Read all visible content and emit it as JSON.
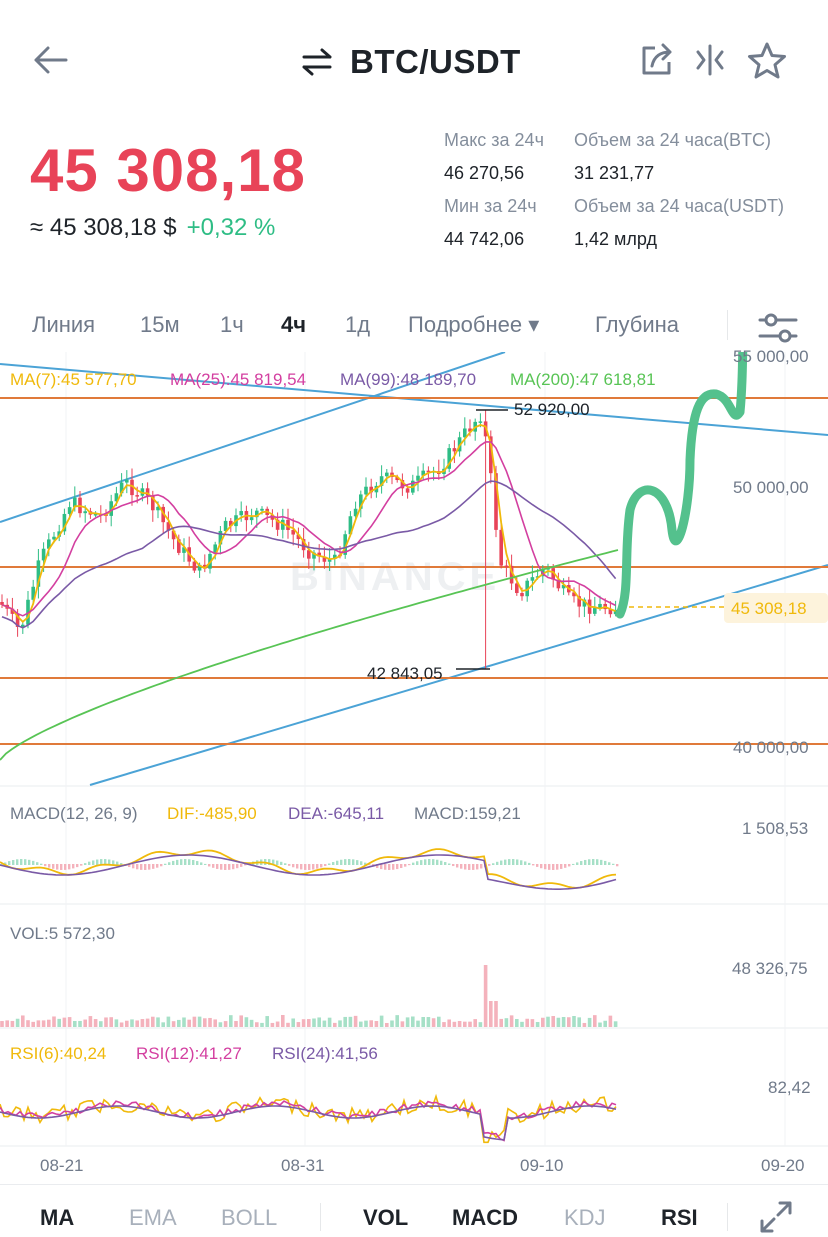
{
  "header": {
    "title": "BTC/USDT"
  },
  "price": {
    "last": "45 308,18",
    "usd": "≈ 45 308,18 $",
    "change": "+0,32 %"
  },
  "stats": {
    "high_label": "Макс за 24ч",
    "high_value": "46 270,56",
    "low_label": "Мин за 24ч",
    "low_value": "44 742,06",
    "vol_btc_label": "Объем за 24 часа(BTC)",
    "vol_btc_value": "31 231,77",
    "vol_usdt_label": "Объем за 24 часа(USDT)",
    "vol_usdt_value": "1,42 млрд"
  },
  "tabs": [
    "Линия",
    "15м",
    "1ч",
    "4ч",
    "1д",
    "Подробнее ▾",
    "Глубина"
  ],
  "active_tab": "4ч",
  "chart": {
    "ma_legend": {
      "ma7": "MA(7):45 577,70",
      "ma25": "MA(25):45 819,54",
      "ma99": "MA(99):48 189,70",
      "ma200": "MA(200):47 618,81"
    },
    "price_axis": [
      "55 000,00",
      "50 000,00",
      "45 308,18",
      "40 000,00"
    ],
    "high_marker": "52 920,00",
    "low_marker": "42 843,05",
    "watermark": "BINANCE",
    "macd_legend": {
      "title": "MACD(12, 26, 9)",
      "dif": "DIF:-485,90",
      "dea": "DEA:-645,11",
      "macd": "MACD:159,21"
    },
    "macd_axis": "1 508,53",
    "vol_legend": "VOL:5 572,30",
    "vol_axis": "48 326,75",
    "rsi_legend": {
      "rsi6": "RSI(6):40,24",
      "rsi12": "RSI(12):41,27",
      "rsi24": "RSI(24):41,56"
    },
    "rsi_axis": "82,42",
    "dates": [
      "08-21",
      "08-31",
      "09-10",
      "09-20"
    ]
  },
  "indicators": {
    "main": [
      "MA",
      "EMA",
      "BOLL"
    ],
    "main_active": "MA",
    "sub": [
      "VOL",
      "MACD",
      "KDJ",
      "RSI"
    ],
    "sub_active": [
      "VOL",
      "MACD",
      "RSI"
    ]
  },
  "colors": {
    "up": "#2ebd85",
    "down": "#e84358",
    "ma7": "#f0b90b",
    "ma25": "#d33fa0",
    "ma99": "#7a5aa6",
    "ma200": "#58c455",
    "trend_blue": "#4ba3d6",
    "level_orange": "#e07a3a",
    "drawn_arrow": "#54c18d"
  },
  "icons": [
    "back-arrow-icon",
    "swap-icon",
    "share-icon",
    "compare-icon",
    "star-icon",
    "chart-settings-icon",
    "expand-icon"
  ]
}
